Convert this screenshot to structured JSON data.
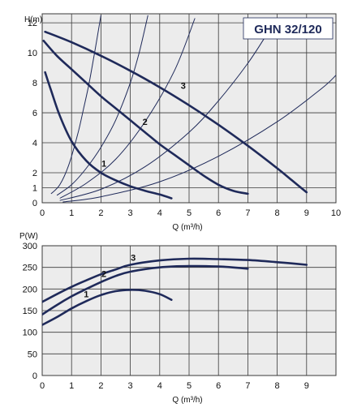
{
  "chart_data": [
    {
      "type": "line",
      "title": "GHN 32/120",
      "ylabel": "H(m)",
      "xlabel": "Q (m³/h)",
      "xlim": [
        0,
        10
      ],
      "ylim": [
        0,
        12.6
      ],
      "x_ticks": [
        0,
        1,
        2,
        3,
        4,
        5,
        6,
        7,
        8,
        9,
        10
      ],
      "y_ticks": [
        0,
        1,
        2,
        4,
        6,
        8,
        10,
        12
      ],
      "grid": true,
      "series": [
        {
          "name": "1",
          "x": [
            0.1,
            0.3,
            0.6,
            1.0,
            1.5,
            2.0,
            2.5,
            3.0,
            3.5,
            4.0,
            4.4
          ],
          "y": [
            8.7,
            7.5,
            5.8,
            4.1,
            2.8,
            2.0,
            1.5,
            1.1,
            0.8,
            0.55,
            0.3
          ]
        },
        {
          "name": "2",
          "x": [
            0.05,
            0.5,
            1.0,
            1.5,
            2.0,
            2.5,
            3.0,
            3.5,
            4.0,
            4.5,
            5.0,
            5.5,
            6.0,
            6.5,
            7.0
          ],
          "y": [
            10.8,
            9.8,
            8.9,
            8.0,
            7.1,
            6.3,
            5.5,
            4.7,
            3.9,
            3.2,
            2.5,
            1.8,
            1.2,
            0.8,
            0.6
          ]
        },
        {
          "name": "3",
          "x": [
            0.1,
            1.0,
            2.0,
            3.0,
            4.0,
            5.0,
            6.0,
            7.0,
            8.0,
            8.5,
            9.0
          ],
          "y": [
            11.4,
            10.7,
            9.8,
            8.8,
            7.7,
            6.5,
            5.2,
            3.8,
            2.3,
            1.5,
            0.7
          ]
        }
      ],
      "system_curves": [
        {
          "x": [
            0.3,
            0.6,
            0.9,
            1.2,
            1.4,
            1.6,
            1.8,
            2.0
          ],
          "y": [
            0.6,
            1.2,
            2.5,
            4.5,
            6.2,
            8.0,
            10.2,
            12.5
          ]
        },
        {
          "x": [
            0.5,
            1.0,
            1.5,
            2.0,
            2.5,
            3.0,
            3.3,
            3.6
          ],
          "y": [
            0.5,
            1.2,
            2.3,
            3.7,
            5.5,
            8.0,
            10.0,
            12.5
          ]
        },
        {
          "x": [
            0.6,
            1.5,
            2.5,
            3.5,
            4.5,
            5.2
          ],
          "y": [
            0.3,
            1.3,
            2.9,
            5.4,
            8.8,
            12.3
          ]
        },
        {
          "x": [
            0.6,
            2.0,
            3.5,
            5.0,
            6.0,
            7.0,
            7.7
          ],
          "y": [
            0.15,
            0.9,
            2.4,
            4.7,
            6.8,
            9.3,
            11.4
          ]
        },
        {
          "x": [
            0.7,
            2.0,
            4.0,
            6.0,
            8.0,
            9.5,
            10.0
          ],
          "y": [
            0.05,
            0.4,
            1.4,
            3.1,
            5.4,
            7.6,
            8.5
          ]
        }
      ]
    },
    {
      "type": "line",
      "ylabel": "P(W)",
      "xlabel": "Q (m³/h)",
      "xlim": [
        0,
        10
      ],
      "ylim": [
        0,
        300
      ],
      "x_ticks": [
        0,
        1,
        2,
        3,
        4,
        5,
        6,
        7,
        8,
        9
      ],
      "y_ticks": [
        0,
        50,
        100,
        150,
        200,
        250,
        300
      ],
      "grid": true,
      "series": [
        {
          "name": "1",
          "x": [
            0,
            0.5,
            1.0,
            1.5,
            2.0,
            2.5,
            3.0,
            3.5,
            4.0,
            4.4
          ],
          "y": [
            117,
            135,
            155,
            172,
            186,
            195,
            198,
            196,
            188,
            175
          ]
        },
        {
          "name": "2",
          "x": [
            0,
            0.5,
            1.0,
            1.5,
            2.0,
            2.5,
            3.0,
            4.0,
            5.0,
            6.0,
            7.0
          ],
          "y": [
            141,
            163,
            183,
            200,
            216,
            230,
            240,
            250,
            253,
            252,
            247
          ]
        },
        {
          "name": "3",
          "x": [
            0,
            0.5,
            1.0,
            1.5,
            2.0,
            2.5,
            3.0,
            4.0,
            5.0,
            6.0,
            7.0,
            8.0,
            9.0
          ],
          "y": [
            170,
            188,
            205,
            220,
            234,
            245,
            256,
            266,
            270,
            269,
            267,
            262,
            256
          ]
        }
      ]
    }
  ]
}
